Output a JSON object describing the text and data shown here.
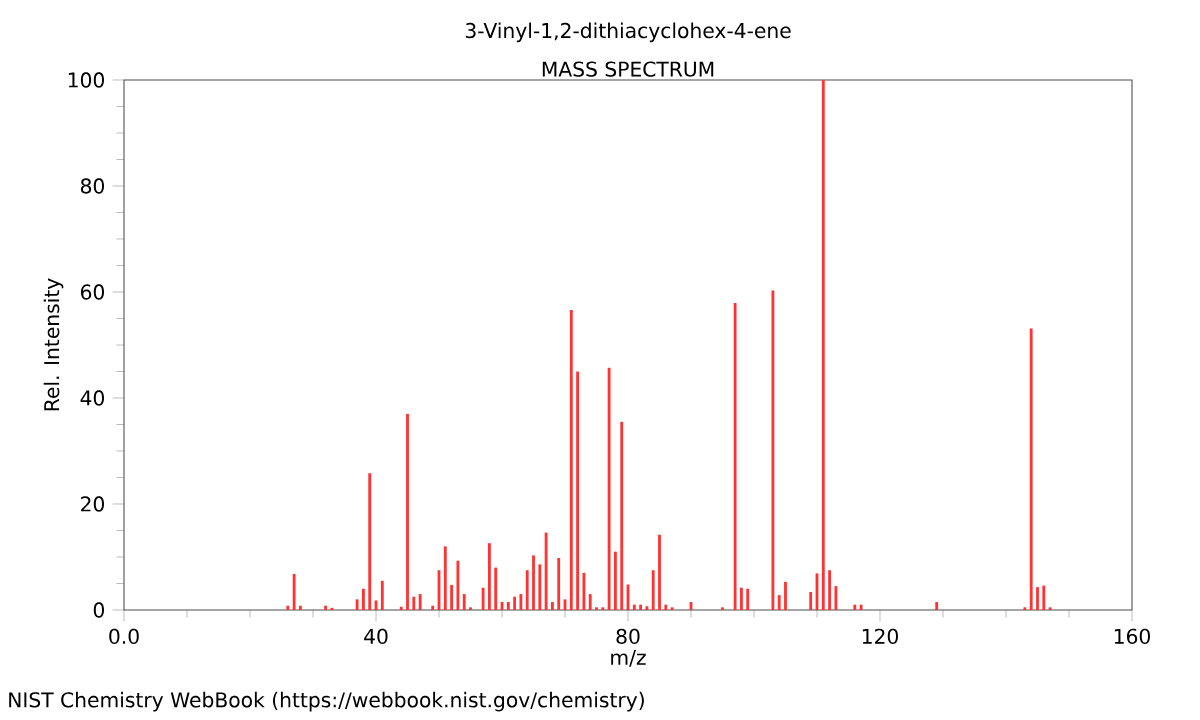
{
  "chart_data": {
    "type": "bar",
    "title": "3-Vinyl-1,2-dithiacyclohex-4-ene",
    "subtitle": "MASS SPECTRUM",
    "xlabel": "m/z",
    "ylabel": "Rel. Intensity",
    "annotations": [
      "NIST Chemistry WebBook (https://webbook.nist.gov/chemistry)"
    ],
    "x": [
      26,
      27,
      28,
      32,
      33,
      37,
      38,
      39,
      40,
      41,
      44,
      45,
      46,
      47,
      49,
      50,
      51,
      52,
      53,
      54,
      55,
      57,
      58,
      59,
      60,
      61,
      62,
      63,
      64,
      65,
      66,
      67,
      68,
      69,
      70,
      71,
      72,
      73,
      74,
      75,
      76,
      77,
      78,
      79,
      80,
      81,
      82,
      83,
      84,
      85,
      86,
      87,
      90,
      95,
      97,
      98,
      99,
      103,
      104,
      105,
      109,
      110,
      111,
      112,
      113,
      116,
      117,
      129,
      143,
      144,
      145,
      146,
      147
    ],
    "values": [
      0.8,
      6.8,
      0.8,
      0.8,
      0.4,
      2,
      4,
      25.8,
      1.8,
      5.5,
      0.6,
      37,
      2.5,
      3,
      0.8,
      7.5,
      12,
      4.7,
      9.3,
      3,
      0.5,
      4.2,
      12.6,
      8,
      1.5,
      1.5,
      2.5,
      3,
      7.5,
      10.3,
      8.6,
      14.6,
      1.5,
      9.8,
      2,
      56.6,
      45,
      7,
      3,
      0.5,
      0.5,
      45.7,
      11,
      35.5,
      4.8,
      1,
      1,
      0.7,
      7.5,
      14.2,
      1,
      0.5,
      1.5,
      0.5,
      57.9,
      4.2,
      4,
      60.3,
      2.8,
      5.3,
      3.4,
      6.9,
      100,
      7.5,
      4.5,
      1,
      1,
      1.5,
      0.5,
      53.1,
      4.3,
      4.6,
      0.5
    ],
    "color": "#ff3333",
    "xlim": [
      0,
      160
    ],
    "ylim": [
      0,
      100
    ],
    "xticks": [
      {
        "value": 0,
        "label": "0.0"
      },
      40,
      80,
      120,
      160
    ],
    "yticks": [
      0,
      20,
      40,
      60,
      80,
      100
    ]
  }
}
